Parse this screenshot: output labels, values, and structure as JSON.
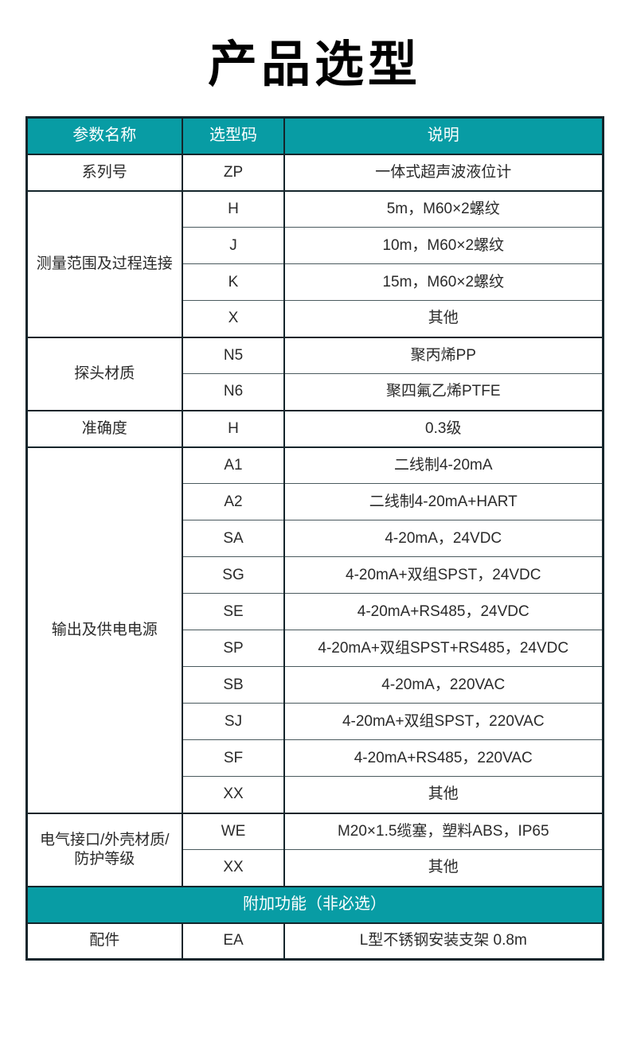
{
  "page": {
    "title": "产品选型"
  },
  "accent_color": "#089ca4",
  "table": {
    "headers": [
      "参数名称",
      "选型码",
      "说明"
    ],
    "sections": [
      {
        "type": "groups",
        "groups": [
          {
            "param": "系列号",
            "rows": [
              {
                "code": "ZP",
                "desc": "一体式超声波液位计"
              }
            ]
          },
          {
            "param": "测量范围及过程连接",
            "rows": [
              {
                "code": "H",
                "desc": "5m，M60×2螺纹"
              },
              {
                "code": "J",
                "desc": "10m，M60×2螺纹"
              },
              {
                "code": "K",
                "desc": "15m，M60×2螺纹"
              },
              {
                "code": "X",
                "desc": "其他"
              }
            ]
          },
          {
            "param": "探头材质",
            "rows": [
              {
                "code": "N5",
                "desc": "聚丙烯PP"
              },
              {
                "code": "N6",
                "desc": "聚四氟乙烯PTFE"
              }
            ]
          },
          {
            "param": "准确度",
            "rows": [
              {
                "code": "H",
                "desc": "0.3级"
              }
            ]
          },
          {
            "param": "输出及供电电源",
            "rows": [
              {
                "code": "A1",
                "desc": "二线制4-20mA"
              },
              {
                "code": "A2",
                "desc": "二线制4-20mA+HART"
              },
              {
                "code": "SA",
                "desc": "4-20mA，24VDC"
              },
              {
                "code": "SG",
                "desc": "4-20mA+双组SPST，24VDC"
              },
              {
                "code": "SE",
                "desc": "4-20mA+RS485，24VDC"
              },
              {
                "code": "SP",
                "desc": "4-20mA+双组SPST+RS485，24VDC"
              },
              {
                "code": "SB",
                "desc": "4-20mA，220VAC"
              },
              {
                "code": "SJ",
                "desc": "4-20mA+双组SPST，220VAC"
              },
              {
                "code": "SF",
                "desc": "4-20mA+RS485，220VAC"
              },
              {
                "code": "XX",
                "desc": "其他"
              }
            ]
          },
          {
            "param": "电气接口/外壳材质/防护等级",
            "rows": [
              {
                "code": "WE",
                "desc": "M20×1.5缆塞，塑料ABS，IP65"
              },
              {
                "code": "XX",
                "desc": "其他"
              }
            ]
          }
        ]
      },
      {
        "type": "banner",
        "label": "附加功能（非必选）"
      },
      {
        "type": "groups",
        "groups": [
          {
            "param": "配件",
            "rows": [
              {
                "code": "EA",
                "desc": "L型不锈钢安装支架 0.8m"
              }
            ]
          }
        ]
      }
    ]
  }
}
